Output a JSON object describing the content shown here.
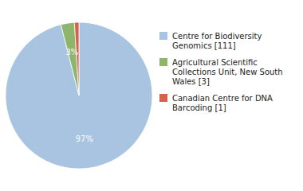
{
  "chart_data": {
    "type": "pie",
    "categories": [
      "Centre for Biodiversity\nGenomics [111]",
      "Agricultural Scientific\nCollections Unit, New South\nWales [3]",
      "Canadian Centre for DNA\nBarcoding [1]"
    ],
    "values": [
      97,
      3,
      1
    ],
    "value_labels": [
      "97%",
      "3%",
      null
    ],
    "colors": [
      "#a8c4e0",
      "#8db56b",
      "#d9604a"
    ],
    "data_labels": true,
    "legend": "right"
  }
}
